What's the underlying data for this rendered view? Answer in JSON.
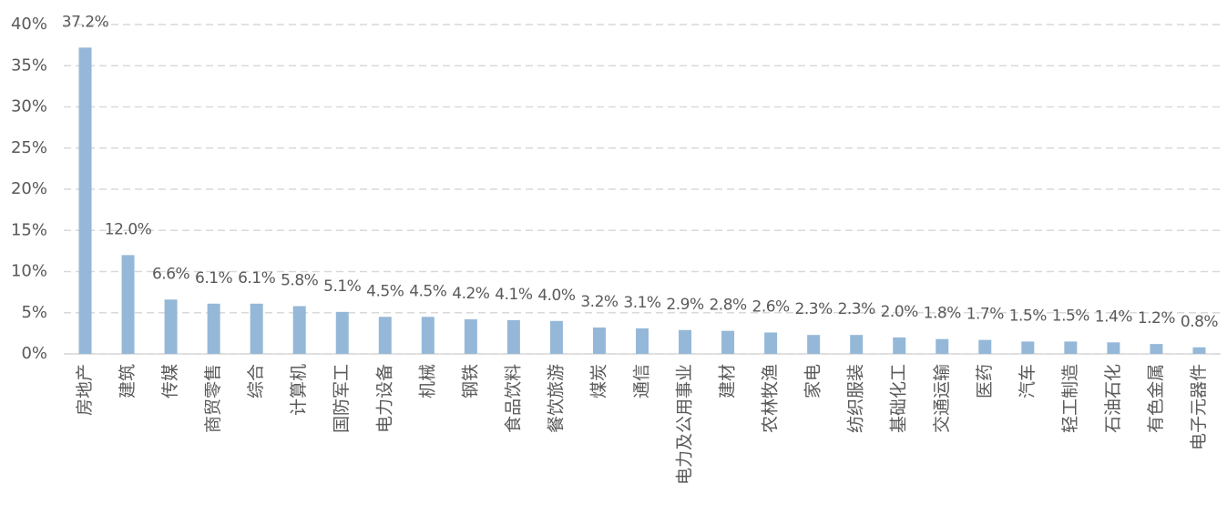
{
  "chart_data": {
    "type": "bar",
    "categories": [
      "房地产",
      "建筑",
      "传媒",
      "商贸零售",
      "综合",
      "计算机",
      "国防军工",
      "电力设备",
      "机械",
      "钢铁",
      "食品饮料",
      "餐饮旅游",
      "煤炭",
      "通信",
      "电力及公用事业",
      "建材",
      "农林牧渔",
      "家电",
      "纺织服装",
      "基础化工",
      "交通运输",
      "医药",
      "汽车",
      "轻工制造",
      "石油石化",
      "有色金属",
      "电子元器件"
    ],
    "values": [
      37.2,
      12.0,
      6.6,
      6.1,
      6.1,
      5.8,
      5.1,
      4.5,
      4.5,
      4.2,
      4.1,
      4.0,
      3.2,
      3.1,
      2.9,
      2.8,
      2.6,
      2.3,
      2.3,
      2.0,
      1.8,
      1.7,
      1.5,
      1.5,
      1.4,
      1.2,
      0.8
    ],
    "value_labels": [
      "37.2%",
      "12.0%",
      "6.6%",
      "6.1%",
      "6.1%",
      "5.8%",
      "5.1%",
      "4.5%",
      "4.5%",
      "4.2%",
      "4.1%",
      "4.0%",
      "3.2%",
      "3.1%",
      "2.9%",
      "2.8%",
      "2.6%",
      "2.3%",
      "2.3%",
      "2.0%",
      "1.8%",
      "1.7%",
      "1.5%",
      "1.5%",
      "1.4%",
      "1.2%",
      "0.8%"
    ],
    "color": "#95b8d8",
    "ylim": [
      0,
      40
    ],
    "yticks": [
      {
        "value": 0,
        "label": "0%"
      },
      {
        "value": 5,
        "label": "5%"
      },
      {
        "value": 10,
        "label": "10%"
      },
      {
        "value": 15,
        "label": "15%"
      },
      {
        "value": 20,
        "label": "20%"
      },
      {
        "value": 25,
        "label": "25%"
      },
      {
        "value": 30,
        "label": "30%"
      },
      {
        "value": 35,
        "label": "35%"
      },
      {
        "value": 40,
        "label": "40%"
      }
    ],
    "grid": true
  }
}
